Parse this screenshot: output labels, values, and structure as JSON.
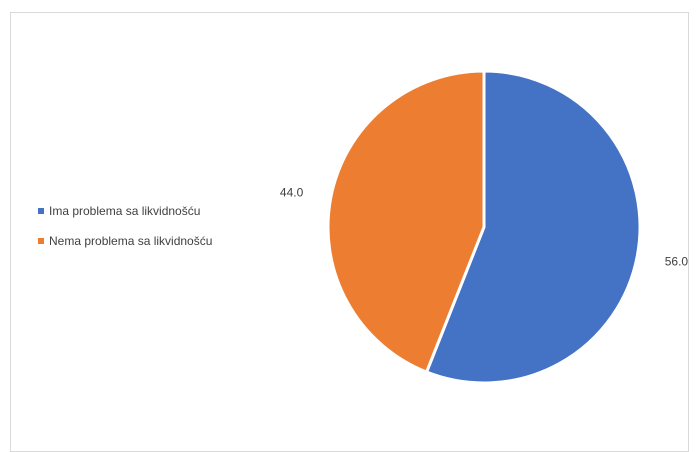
{
  "chart_data": {
    "type": "pie",
    "title": "",
    "slices": [
      {
        "label": "Ima problema sa likvidnošću",
        "value": 56.0,
        "display": "56.0",
        "color": "#4472c4"
      },
      {
        "label": "Nema problema sa likvidnošću",
        "value": 44.0,
        "display": "44.0",
        "color": "#ed7d31"
      }
    ],
    "legend_position": "left",
    "start_angle_deg": 0,
    "direction": "clockwise"
  }
}
